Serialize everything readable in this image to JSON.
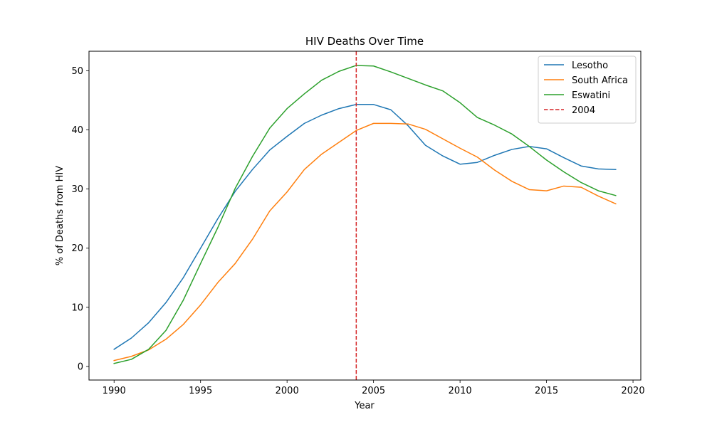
{
  "chart_data": {
    "type": "line",
    "title": "HIV Deaths Over Time",
    "xlabel": "Year",
    "ylabel": "% of Deaths from HIV",
    "xlim": [
      1988.55,
      2020.45
    ],
    "ylim": [
      -2.3,
      53.3
    ],
    "x_ticks": [
      1990,
      1995,
      2000,
      2005,
      2010,
      2015,
      2020
    ],
    "y_ticks": [
      0,
      10,
      20,
      30,
      40,
      50
    ],
    "grid": false,
    "legend_position": "top-right",
    "x": [
      1990,
      1991,
      1992,
      1993,
      1994,
      1995,
      1996,
      1997,
      1998,
      1999,
      2000,
      2001,
      2002,
      2003,
      2004,
      2005,
      2006,
      2007,
      2008,
      2009,
      2010,
      2011,
      2012,
      2013,
      2014,
      2015,
      2016,
      2017,
      2018,
      2019
    ],
    "series": [
      {
        "name": "Lesotho",
        "color": "#1f77b4",
        "values": [
          2.9,
          4.8,
          7.4,
          10.8,
          15.0,
          20.0,
          25.0,
          29.6,
          33.3,
          36.6,
          38.9,
          41.1,
          42.5,
          43.6,
          44.3,
          44.3,
          43.4,
          40.7,
          37.4,
          35.6,
          34.2,
          34.5,
          35.7,
          36.7,
          37.2,
          36.8,
          35.3,
          33.9,
          33.4,
          33.3
        ]
      },
      {
        "name": "South Africa",
        "color": "#ff7f0e",
        "values": [
          1.0,
          1.7,
          2.8,
          4.6,
          7.1,
          10.4,
          14.2,
          17.4,
          21.5,
          26.3,
          29.5,
          33.3,
          35.9,
          37.9,
          39.9,
          41.1,
          41.1,
          41.0,
          40.1,
          38.5,
          36.9,
          35.4,
          33.2,
          31.3,
          29.9,
          29.7,
          30.5,
          30.3,
          28.8,
          27.5
        ]
      },
      {
        "name": "Eswatini",
        "color": "#2ca02c",
        "values": [
          0.5,
          1.2,
          2.9,
          6.1,
          11.2,
          17.4,
          23.5,
          30.1,
          35.5,
          40.3,
          43.6,
          46.1,
          48.4,
          49.9,
          50.9,
          50.8,
          49.8,
          48.7,
          47.6,
          46.6,
          44.6,
          42.1,
          40.8,
          39.3,
          37.2,
          34.9,
          32.9,
          31.1,
          29.7,
          28.9
        ]
      }
    ],
    "reference_lines": [
      {
        "name": "2004",
        "x": 2004,
        "color": "#d62728",
        "style": "dashed"
      }
    ]
  }
}
